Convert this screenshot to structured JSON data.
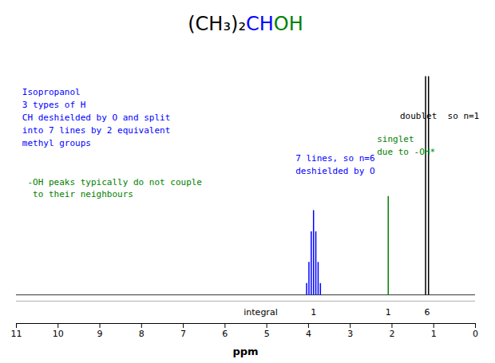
{
  "chart_data": {
    "type": "stem",
    "title": [
      {
        "text": "(CH₃)₂",
        "color": "black"
      },
      {
        "text": "CH",
        "color": "#0000ff"
      },
      {
        "text": "OH",
        "color": "#008000"
      }
    ],
    "xlabel": "ppm",
    "xlim": [
      11,
      0
    ],
    "xticks": [
      11,
      10,
      9,
      8,
      7,
      6,
      5,
      4,
      3,
      2,
      1,
      0
    ],
    "ylim": [
      -0.12,
      1.05
    ],
    "tick_labels": "x",
    "grid": false,
    "series": [
      {
        "color": "#0000ff",
        "x": [
          3.705,
          3.76,
          3.815,
          3.87,
          3.925,
          3.98,
          4.035
        ],
        "values": [
          0.05,
          0.14,
          0.27,
          0.36,
          0.27,
          0.14,
          0.05
        ],
        "integral": 1
      },
      {
        "color": "#008000",
        "x": [
          2.08
        ],
        "values": [
          0.42
        ],
        "integral": 1
      },
      {
        "color": "black",
        "x": [
          1.115,
          1.185
        ],
        "values": [
          0.93,
          0.93
        ],
        "integral": 6
      }
    ],
    "integral_label": "integral",
    "annotations": [
      {
        "text": "Isopropanol\n3 types of H\nCH deshielded by O and split\ninto 7 lines by 2 equivalent\nmethyl groups",
        "x": 10.85,
        "y": 0.88,
        "color": "#0000ff"
      },
      {
        "text": " -OH peaks typically do not couple\n  to their neighbours",
        "x": 10.85,
        "y": 0.5,
        "color": "#008000"
      },
      {
        "text": "7 lines, so n=6\ndeshielded by O",
        "x": 4.3,
        "y": 0.6,
        "color": "#0000ff"
      },
      {
        "text": "singlet\ndue to -OH*",
        "x": 2.35,
        "y": 0.68,
        "color": "#008000"
      },
      {
        "text": "doublet  so n=1",
        "x": 1.8,
        "y": 0.78,
        "color": "black"
      }
    ]
  }
}
